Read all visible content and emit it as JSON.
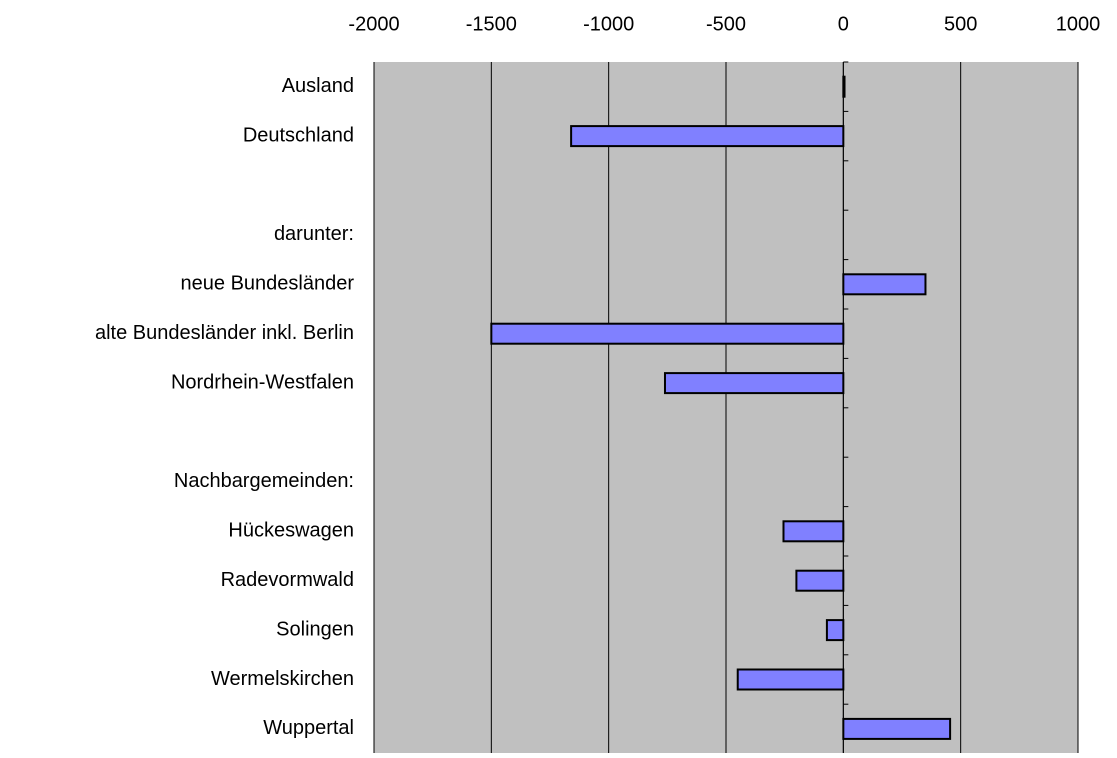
{
  "chart_data": {
    "type": "bar",
    "orientation": "horizontal",
    "categories": [
      "Ausland",
      "Deutschland",
      null,
      "darunter:",
      "neue Bundesländer",
      "alte Bundesländer inkl. Berlin",
      "Nordrhein-Westfalen",
      null,
      "Nachbargemeinden:",
      "Hückeswagen",
      "Radevormwald",
      "Solingen",
      "Wermelskirchen",
      "Wuppertal"
    ],
    "values": [
      5,
      -1160,
      null,
      null,
      350,
      -1500,
      -760,
      null,
      null,
      -255,
      -200,
      -70,
      -450,
      455
    ],
    "color": "#8080ff",
    "xlim": [
      -2000,
      1000
    ],
    "xticks": [
      -2000,
      -1500,
      -1000,
      -500,
      0,
      500,
      1000
    ],
    "grid": true
  }
}
